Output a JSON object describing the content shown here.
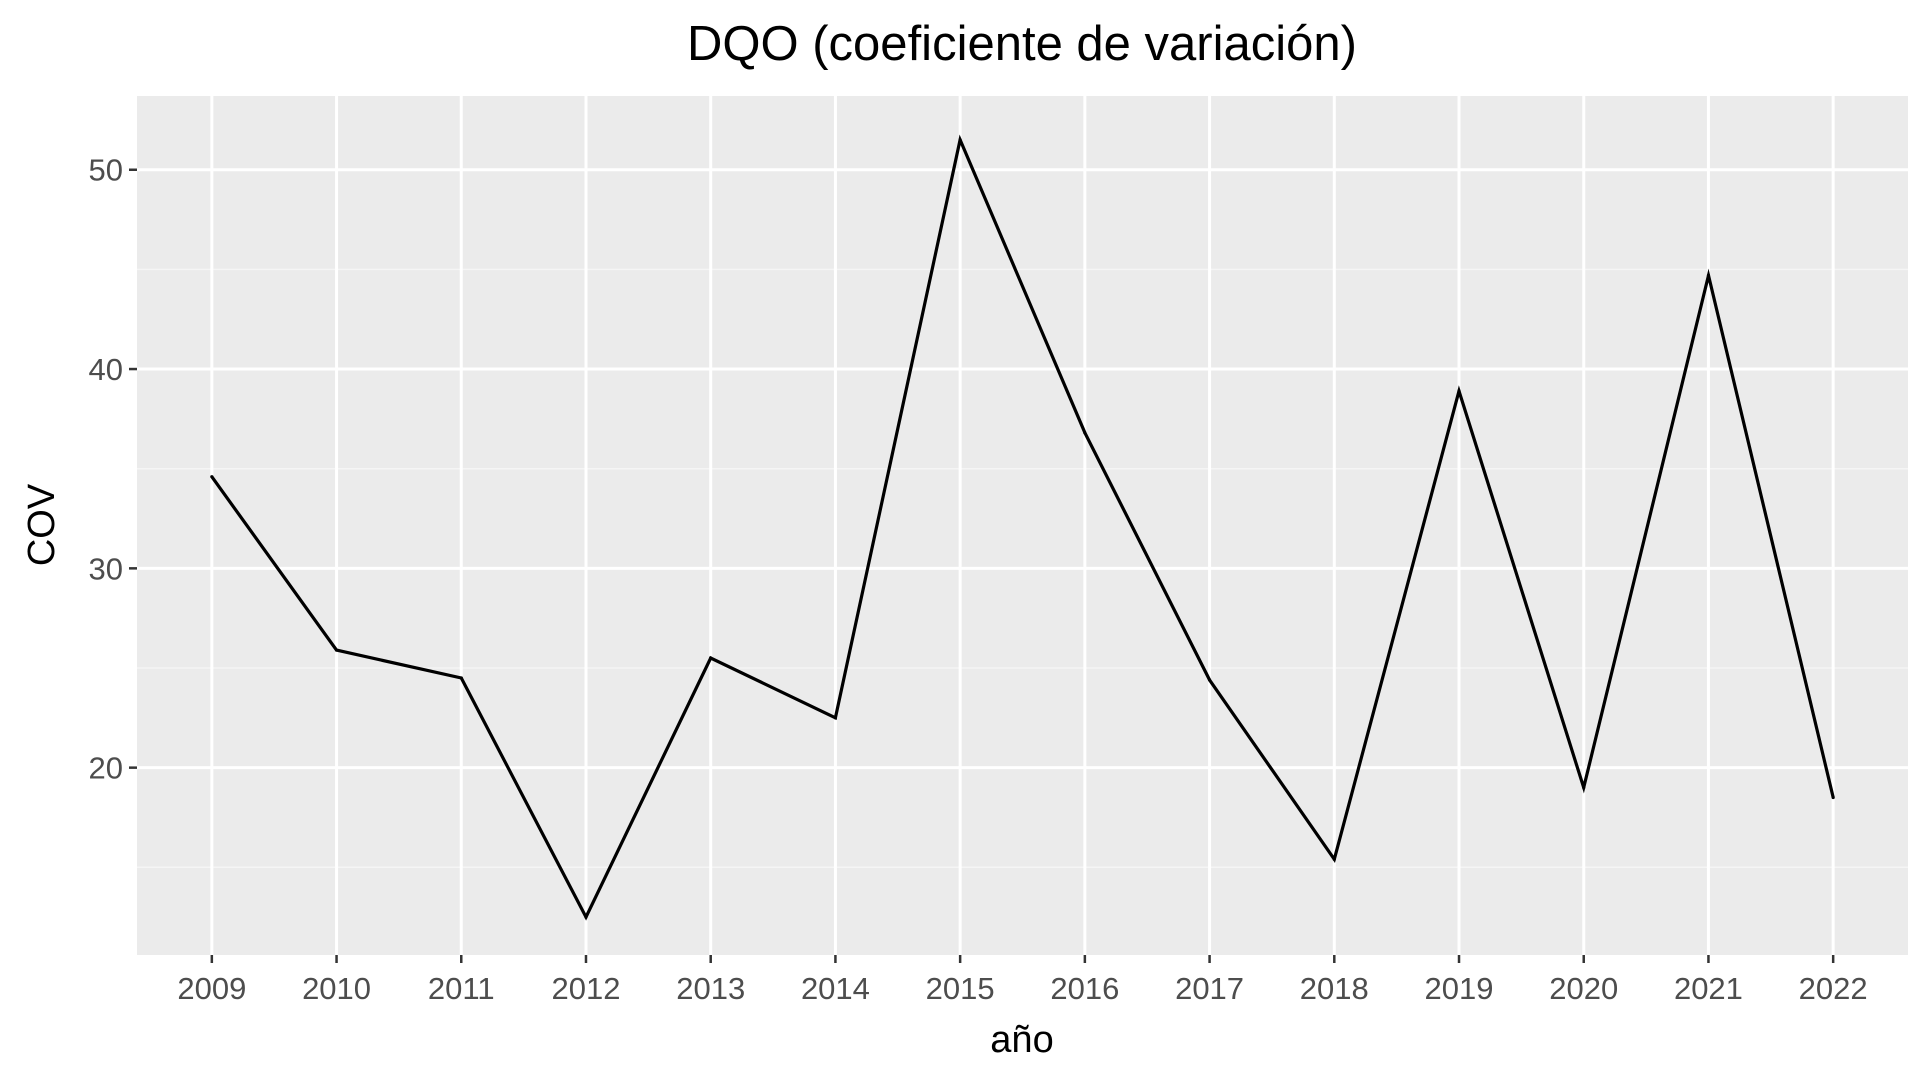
{
  "chart_data": {
    "type": "line",
    "title": "DQO (coeficiente de variación)",
    "xlabel": "año",
    "ylabel": "COV",
    "x": [
      2009,
      2010,
      2011,
      2012,
      2013,
      2014,
      2015,
      2016,
      2017,
      2018,
      2019,
      2020,
      2021,
      2022
    ],
    "series": [
      {
        "values": [
          34.6,
          25.9,
          24.5,
          12.5,
          25.5,
          22.5,
          51.5,
          36.8,
          24.4,
          15.4,
          38.9,
          19.0,
          44.7,
          18.5
        ]
      }
    ],
    "xlim": [
      2008.4,
      2022.6
    ],
    "ylim": [
      10.6,
      53.7
    ],
    "yticks": [
      20,
      30,
      40,
      50
    ],
    "ytick_labels": [
      "20",
      "30",
      "40",
      "50"
    ],
    "xtick_labels": [
      "2009",
      "2010",
      "2011",
      "2012",
      "2013",
      "2014",
      "2015",
      "2016",
      "2017",
      "2018",
      "2019",
      "2020",
      "2021",
      "2022"
    ],
    "grid": true,
    "legend": "none",
    "colors": {
      "panel_background": "#ebebeb",
      "grid_major": "#ffffff",
      "grid_minor": "#f5f5f5",
      "line": "#000000",
      "tick": "#333333"
    }
  }
}
